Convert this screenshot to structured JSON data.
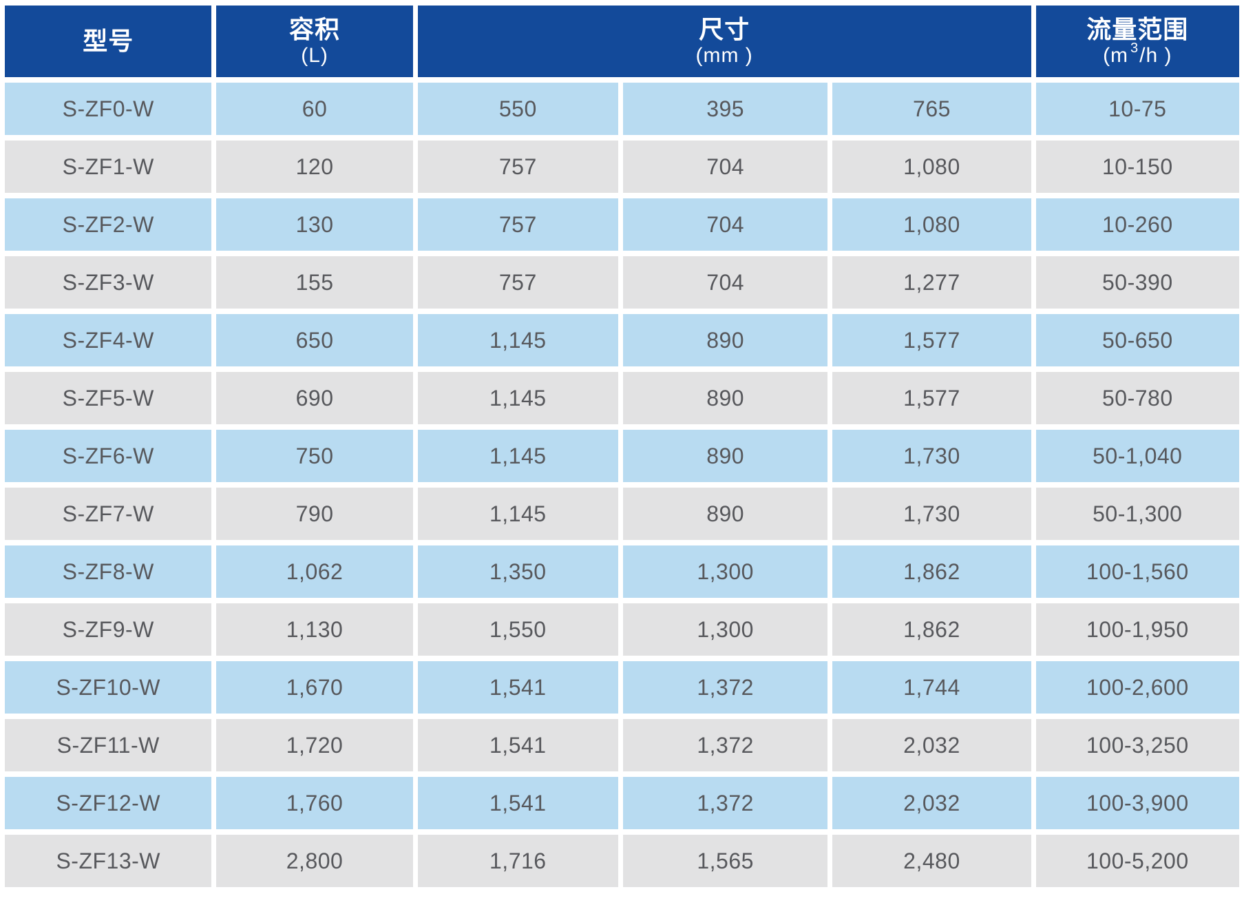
{
  "chart_data": {
    "type": "table",
    "header": {
      "model": "型号",
      "volume_title": "容积",
      "volume_unit": "(L)",
      "size_title": "尺寸",
      "size_unit": "(mm )",
      "flow_title": "流量范围",
      "flow_unit_prefix": "(m",
      "flow_unit_sup": "3",
      "flow_unit_suffix": "/h )"
    },
    "rows": [
      {
        "model": "S-ZF0-W",
        "volume": "60",
        "dim1": "550",
        "dim2": "395",
        "dim3": "765",
        "flow": "10-75"
      },
      {
        "model": "S-ZF1-W",
        "volume": "120",
        "dim1": "757",
        "dim2": "704",
        "dim3": "1,080",
        "flow": "10-150"
      },
      {
        "model": "S-ZF2-W",
        "volume": "130",
        "dim1": "757",
        "dim2": "704",
        "dim3": "1,080",
        "flow": "10-260"
      },
      {
        "model": "S-ZF3-W",
        "volume": "155",
        "dim1": "757",
        "dim2": "704",
        "dim3": "1,277",
        "flow": "50-390"
      },
      {
        "model": "S-ZF4-W",
        "volume": "650",
        "dim1": "1,145",
        "dim2": "890",
        "dim3": "1,577",
        "flow": "50-650"
      },
      {
        "model": "S-ZF5-W",
        "volume": "690",
        "dim1": "1,145",
        "dim2": "890",
        "dim3": "1,577",
        "flow": "50-780"
      },
      {
        "model": "S-ZF6-W",
        "volume": "750",
        "dim1": "1,145",
        "dim2": "890",
        "dim3": "1,730",
        "flow": "50-1,040"
      },
      {
        "model": "S-ZF7-W",
        "volume": "790",
        "dim1": "1,145",
        "dim2": "890",
        "dim3": "1,730",
        "flow": "50-1,300"
      },
      {
        "model": "S-ZF8-W",
        "volume": "1,062",
        "dim1": "1,350",
        "dim2": "1,300",
        "dim3": "1,862",
        "flow": "100-1,560"
      },
      {
        "model": "S-ZF9-W",
        "volume": "1,130",
        "dim1": "1,550",
        "dim2": "1,300",
        "dim3": "1,862",
        "flow": "100-1,950"
      },
      {
        "model": "S-ZF10-W",
        "volume": "1,670",
        "dim1": "1,541",
        "dim2": "1,372",
        "dim3": "1,744",
        "flow": "100-2,600"
      },
      {
        "model": "S-ZF11-W",
        "volume": "1,720",
        "dim1": "1,541",
        "dim2": "1,372",
        "dim3": "2,032",
        "flow": "100-3,250"
      },
      {
        "model": "S-ZF12-W",
        "volume": "1,760",
        "dim1": "1,541",
        "dim2": "1,372",
        "dim3": "2,032",
        "flow": "100-3,900"
      },
      {
        "model": "S-ZF13-W",
        "volume": "2,800",
        "dim1": "1,716",
        "dim2": "1,565",
        "dim3": "2,480",
        "flow": "100-5,200"
      }
    ]
  },
  "colors": {
    "header_bg": "#134A9A",
    "row_blue": "#B8DBF1",
    "row_gray": "#E2E2E3",
    "cell_text": "#57585C",
    "header_text": "#FFFFFF",
    "page_bg": "#FFFFFF"
  }
}
